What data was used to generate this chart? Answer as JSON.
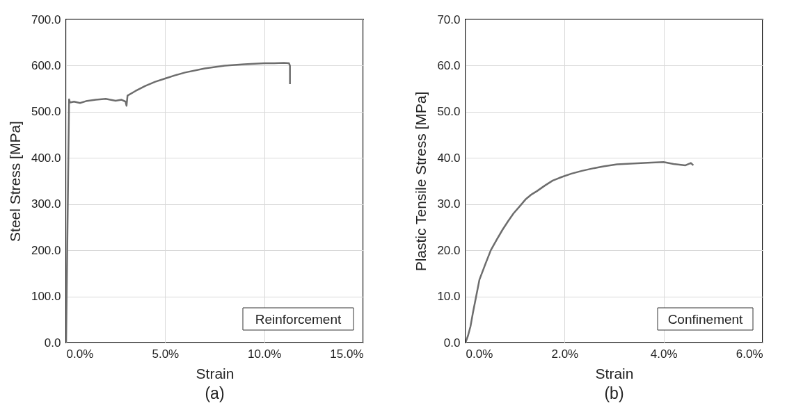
{
  "chart_data": [
    {
      "type": "line",
      "title": "(a)",
      "xlabel": "Strain",
      "ylabel": "Steel Stress [MPa]",
      "annotations": [
        "Reinforcement"
      ],
      "grid": true,
      "xlim": [
        0,
        15
      ],
      "xticks": [
        {
          "value": 0,
          "label": "0.0%"
        },
        {
          "value": 5,
          "label": "5.0%"
        },
        {
          "value": 10,
          "label": "10.0%"
        },
        {
          "value": 15,
          "label": "15.0%"
        }
      ],
      "ylim": [
        0,
        700
      ],
      "yticks": [
        {
          "value": 0,
          "label": "0.0"
        },
        {
          "value": 100,
          "label": "100.0"
        },
        {
          "value": 200,
          "label": "200.0"
        },
        {
          "value": 300,
          "label": "300.0"
        },
        {
          "value": 400,
          "label": "400.0"
        },
        {
          "value": 500,
          "label": "500.0"
        },
        {
          "value": 600,
          "label": "600.0"
        },
        {
          "value": 700,
          "label": "700.0"
        }
      ],
      "series": [
        {
          "color": "#6d6d6d",
          "x": [
            0,
            0.15,
            0.2,
            0.4,
            0.7,
            1.0,
            1.5,
            2.0,
            2.5,
            2.8,
            3.0,
            3.05,
            3.1,
            3.5,
            4.0,
            4.5,
            5.0,
            5.5,
            6.0,
            7.0,
            7.5,
            8.0,
            9.0,
            10.0,
            10.5,
            11.0,
            11.25,
            11.3,
            11.3
          ],
          "values": [
            0,
            527,
            520,
            522,
            519,
            523,
            526,
            528,
            524,
            526,
            522,
            513,
            535,
            545,
            556,
            565,
            572,
            579,
            585,
            594,
            597,
            600,
            603,
            605,
            605,
            606,
            605,
            600,
            560
          ]
        }
      ]
    },
    {
      "type": "line",
      "title": "(b)",
      "xlabel": "Strain",
      "ylabel": "Plastic Tensile Stress [MPa]",
      "annotations": [
        "Confinement"
      ],
      "grid": true,
      "xlim": [
        0,
        6
      ],
      "xticks": [
        {
          "value": 0,
          "label": "0.0%"
        },
        {
          "value": 2,
          "label": "2.0%"
        },
        {
          "value": 4,
          "label": "4.0%"
        },
        {
          "value": 6,
          "label": "6.0%"
        }
      ],
      "ylim": [
        0,
        70
      ],
      "yticks": [
        {
          "value": 0,
          "label": "0.0"
        },
        {
          "value": 10,
          "label": "10.0"
        },
        {
          "value": 20,
          "label": "20.0"
        },
        {
          "value": 30,
          "label": "30.0"
        },
        {
          "value": 40,
          "label": "40.0"
        },
        {
          "value": 50,
          "label": "50.0"
        },
        {
          "value": 60,
          "label": "60.0"
        },
        {
          "value": 70,
          "label": "70.0"
        }
      ],
      "series": [
        {
          "color": "#6d6d6d",
          "x": [
            0,
            0.05,
            0.1,
            0.15,
            0.28,
            0.4,
            0.51,
            0.63,
            0.75,
            0.86,
            0.97,
            1.1,
            1.21,
            1.32,
            1.44,
            1.6,
            1.76,
            1.95,
            2.14,
            2.35,
            2.6,
            2.8,
            3.06,
            3.4,
            3.75,
            4.0,
            4.2,
            4.44,
            4.55,
            4.6
          ],
          "values": [
            0,
            1.5,
            3.5,
            6.5,
            13.6,
            17,
            20,
            22.3,
            24.5,
            26.3,
            28,
            29.6,
            31,
            32,
            32.8,
            34,
            35.1,
            35.9,
            36.6,
            37.2,
            37.8,
            38.2,
            38.6,
            38.8,
            39,
            39.1,
            38.7,
            38.4,
            38.9,
            38.4
          ]
        }
      ]
    }
  ]
}
